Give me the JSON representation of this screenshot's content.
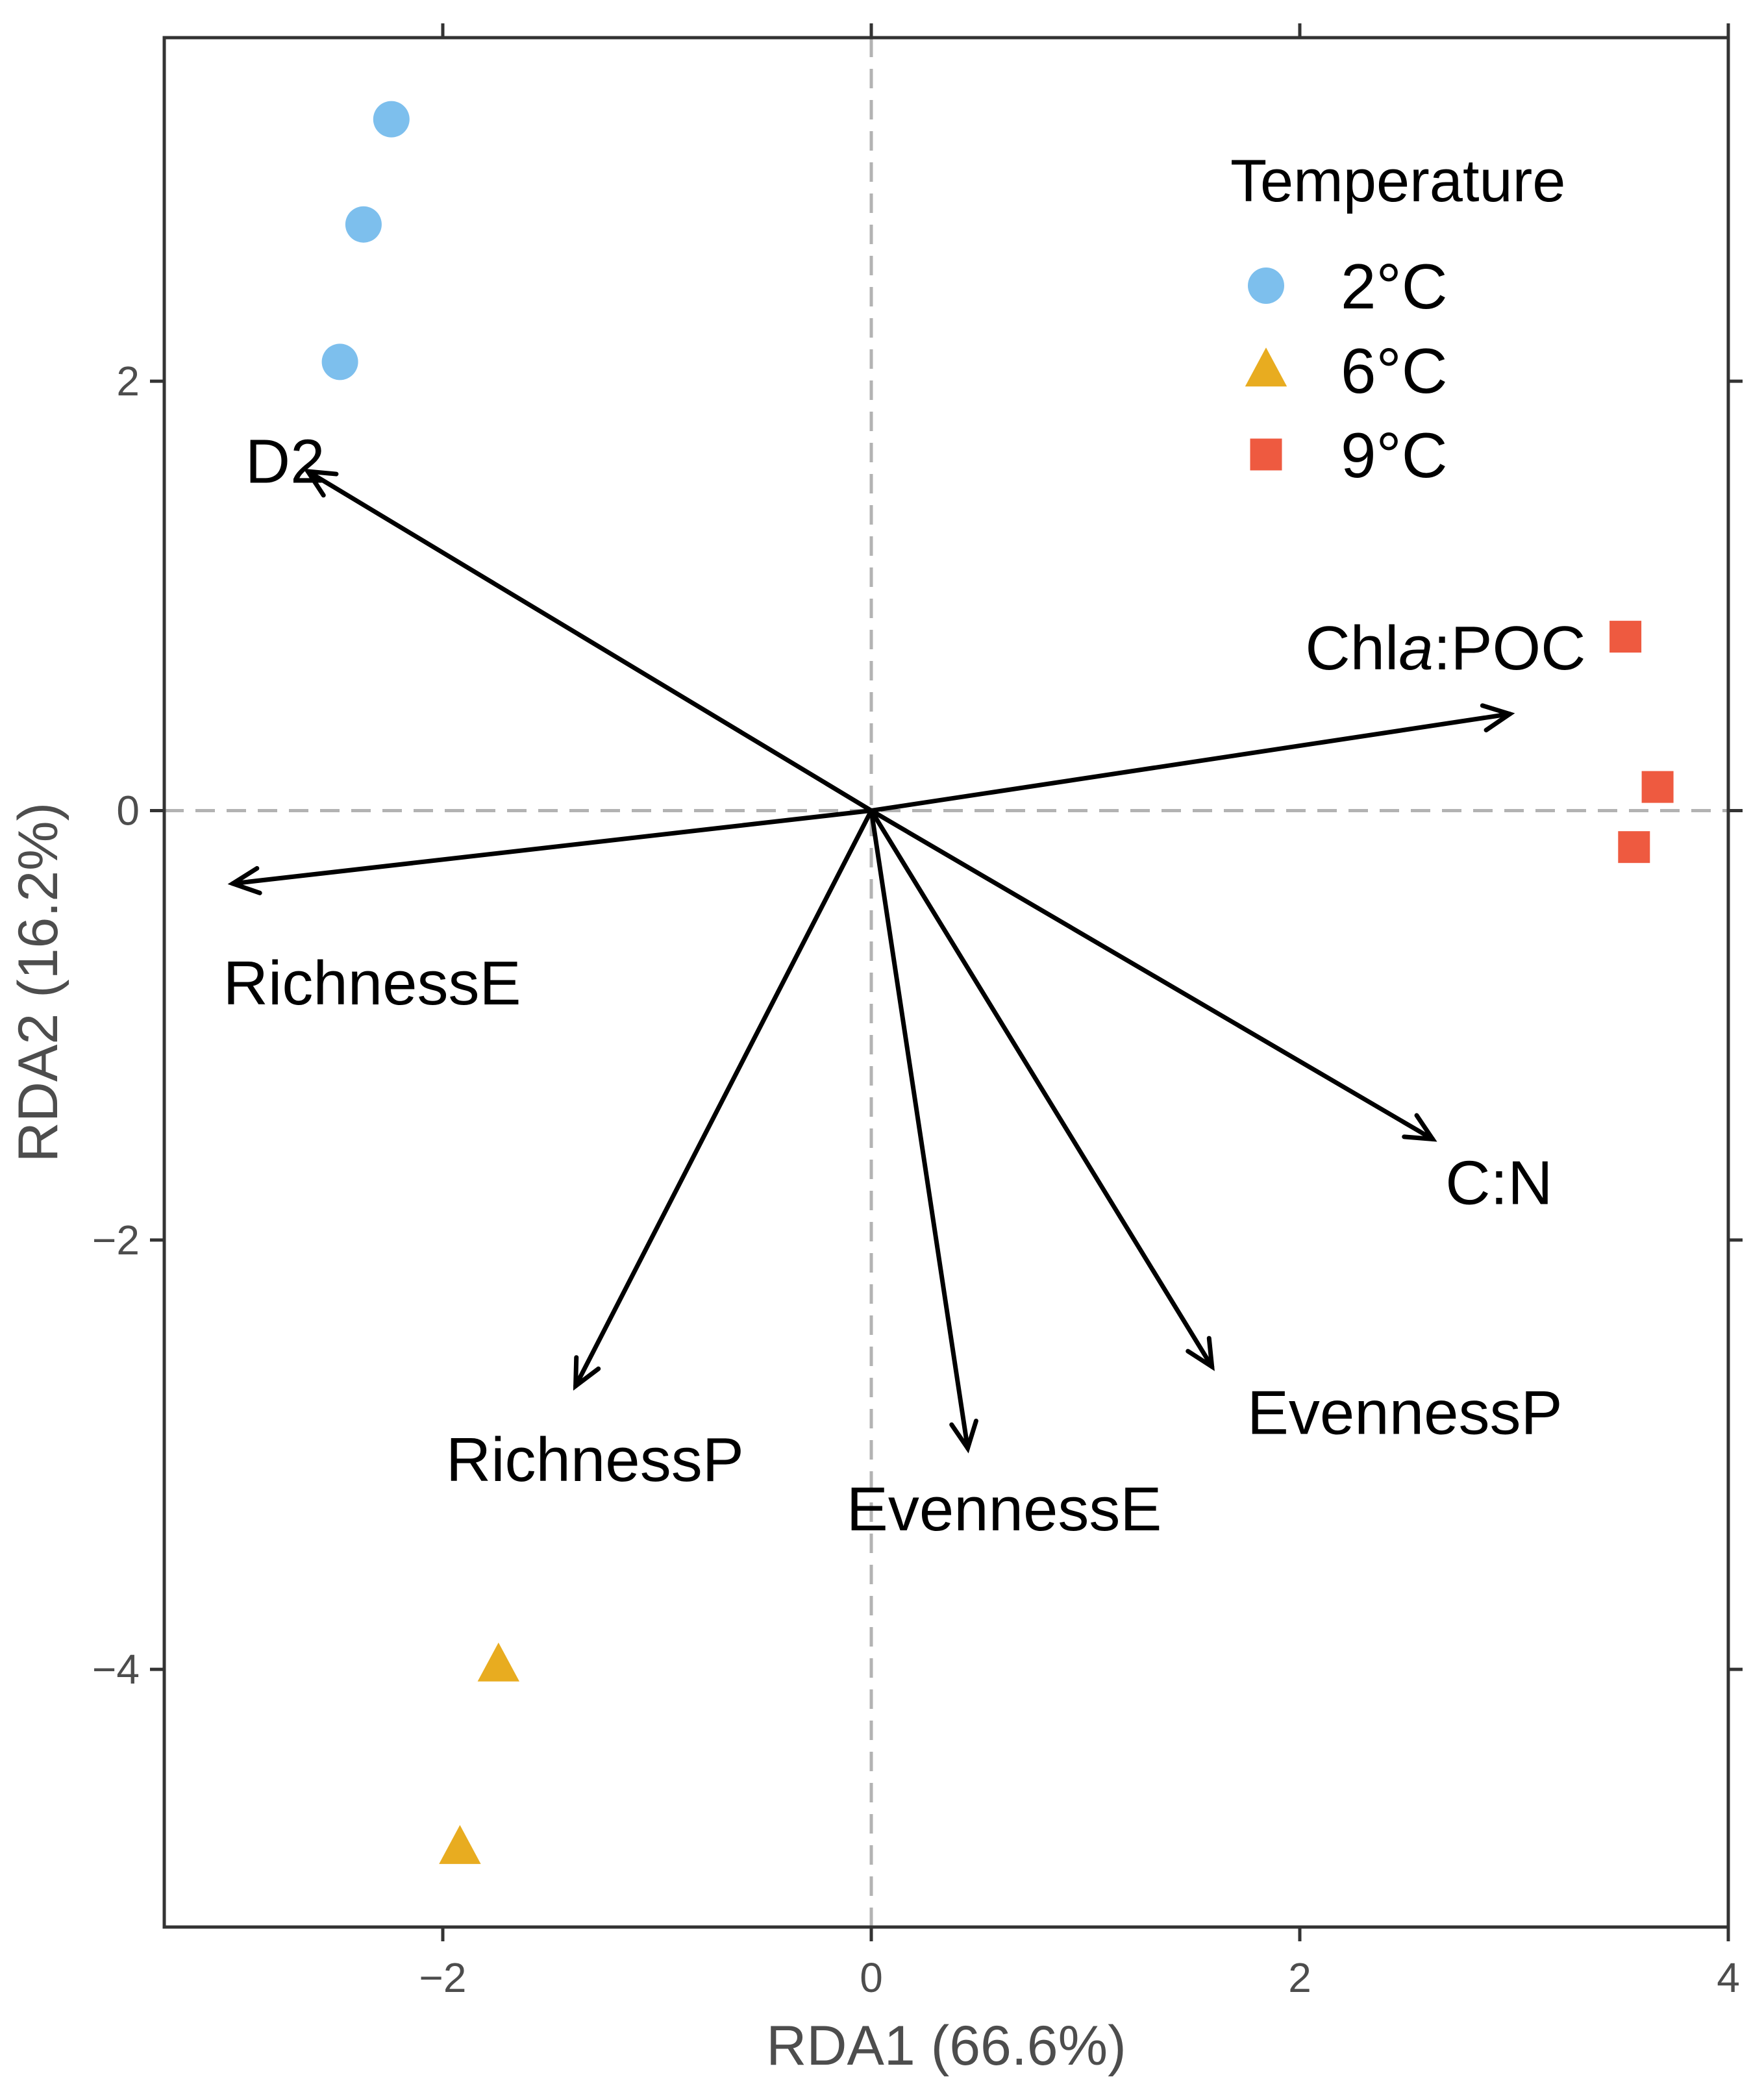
{
  "chart_data": {
    "type": "scatter",
    "subtype": "rda-biplot",
    "xlabel": "RDA1 (66.6%)",
    "ylabel": "RDA2 (16.2%)",
    "xlim": [
      -3.3,
      4.0
    ],
    "ylim": [
      -5.2,
      3.6
    ],
    "xticks": [
      -2,
      0,
      2,
      4
    ],
    "yticks": [
      -4,
      -2,
      0,
      2
    ],
    "xtick_labels": [
      "−2",
      "0",
      "2",
      "4"
    ],
    "ytick_labels": [
      "−4",
      "−2",
      "0",
      "2"
    ],
    "reference_lines": {
      "x": 0,
      "y": 0,
      "style": "dashed"
    },
    "legend": {
      "title": "Temperature",
      "position": "top-right"
    },
    "groups": [
      {
        "name": "2°C",
        "marker": "circle",
        "color": "#7dbfed",
        "points": [
          {
            "x": -2.24,
            "y": 3.22
          },
          {
            "x": -2.37,
            "y": 2.73
          },
          {
            "x": -2.48,
            "y": 2.09
          }
        ]
      },
      {
        "name": "6°C",
        "marker": "triangle",
        "color": "#e8ac20",
        "points": [
          {
            "x": -1.74,
            "y": -3.98
          },
          {
            "x": -1.92,
            "y": -4.83
          }
        ]
      },
      {
        "name": "9°C",
        "marker": "square",
        "color": "#ee5a40",
        "points": [
          {
            "x": 3.52,
            "y": 0.81
          },
          {
            "x": 3.67,
            "y": 0.11
          },
          {
            "x": 3.56,
            "y": -0.17
          }
        ]
      }
    ],
    "vectors": [
      {
        "name": "D2",
        "x": -2.63,
        "y": 1.58,
        "label_x": -2.55,
        "label_y": 1.63,
        "anchor": "end"
      },
      {
        "name": "Chla:POC",
        "x": 2.98,
        "y": 0.45,
        "label_x": 2.68,
        "label_y": 0.76,
        "anchor": "middle",
        "italic_part": "a"
      },
      {
        "name": "RichnessE",
        "x": -2.98,
        "y": -0.34,
        "label_x": -2.33,
        "label_y": -0.8,
        "anchor": "middle"
      },
      {
        "name": "C:N",
        "x": 2.62,
        "y": -1.53,
        "label_x": 2.93,
        "label_y": -1.73,
        "anchor": "middle"
      },
      {
        "name": "EvennessP",
        "x": 1.59,
        "y": -2.59,
        "label_x": 2.49,
        "label_y": -2.8,
        "anchor": "middle"
      },
      {
        "name": "EvennessE",
        "x": 0.45,
        "y": -2.97,
        "label_x": 0.62,
        "label_y": -3.25,
        "anchor": "middle"
      },
      {
        "name": "RichnessP",
        "x": -1.38,
        "y": -2.68,
        "label_x": -1.29,
        "label_y": -3.02,
        "anchor": "middle"
      }
    ]
  },
  "colors": {
    "axis": "#333333",
    "tick_text": "#4d4d4d",
    "grid_dash": "#b3b3b3",
    "arrow": "#000000"
  }
}
